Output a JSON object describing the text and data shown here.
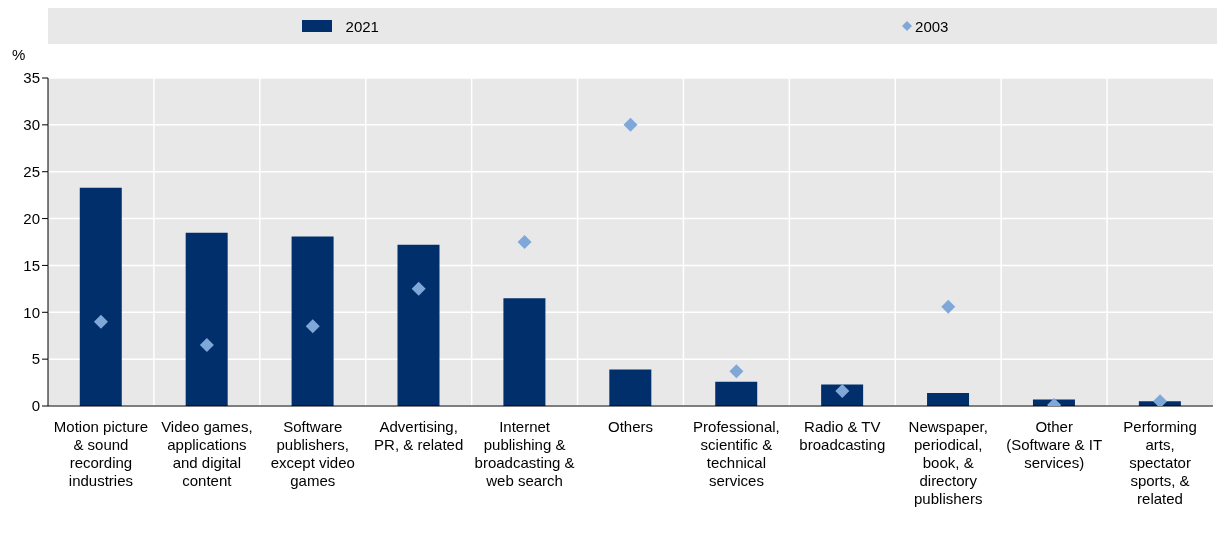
{
  "chart_data": {
    "type": "bar",
    "ylabel": "%",
    "categories": [
      "Motion picture & sound recording industries",
      "Video games, applications and digital content",
      "Software publishers, except video games",
      "Advertising, PR, & related",
      "Internet publishing & broadcasting & web search",
      "Others",
      "Professional, scientific & technical services",
      "Radio & TV broadcasting",
      "Newspaper, periodical, book, & directory publishers",
      "Other (Software & IT services)",
      "Performing arts, spectator sports, & related"
    ],
    "series": [
      {
        "name": "2021",
        "color": "#002f6c",
        "values": [
          23.3,
          18.5,
          18.1,
          17.2,
          11.5,
          3.9,
          2.6,
          2.3,
          1.4,
          0.7,
          0.5
        ]
      },
      {
        "name": "2003",
        "type": "scatter",
        "marker": "diamond",
        "color": "#7fa8d9",
        "values": [
          9.0,
          6.5,
          8.5,
          12.5,
          17.5,
          30.0,
          3.7,
          1.6,
          10.6,
          0.1,
          0.5
        ]
      }
    ],
    "ylim": [
      0,
      35
    ],
    "yticks": [
      0,
      5,
      10,
      15,
      20,
      25,
      30,
      35
    ],
    "grid": true,
    "legend": "top"
  }
}
